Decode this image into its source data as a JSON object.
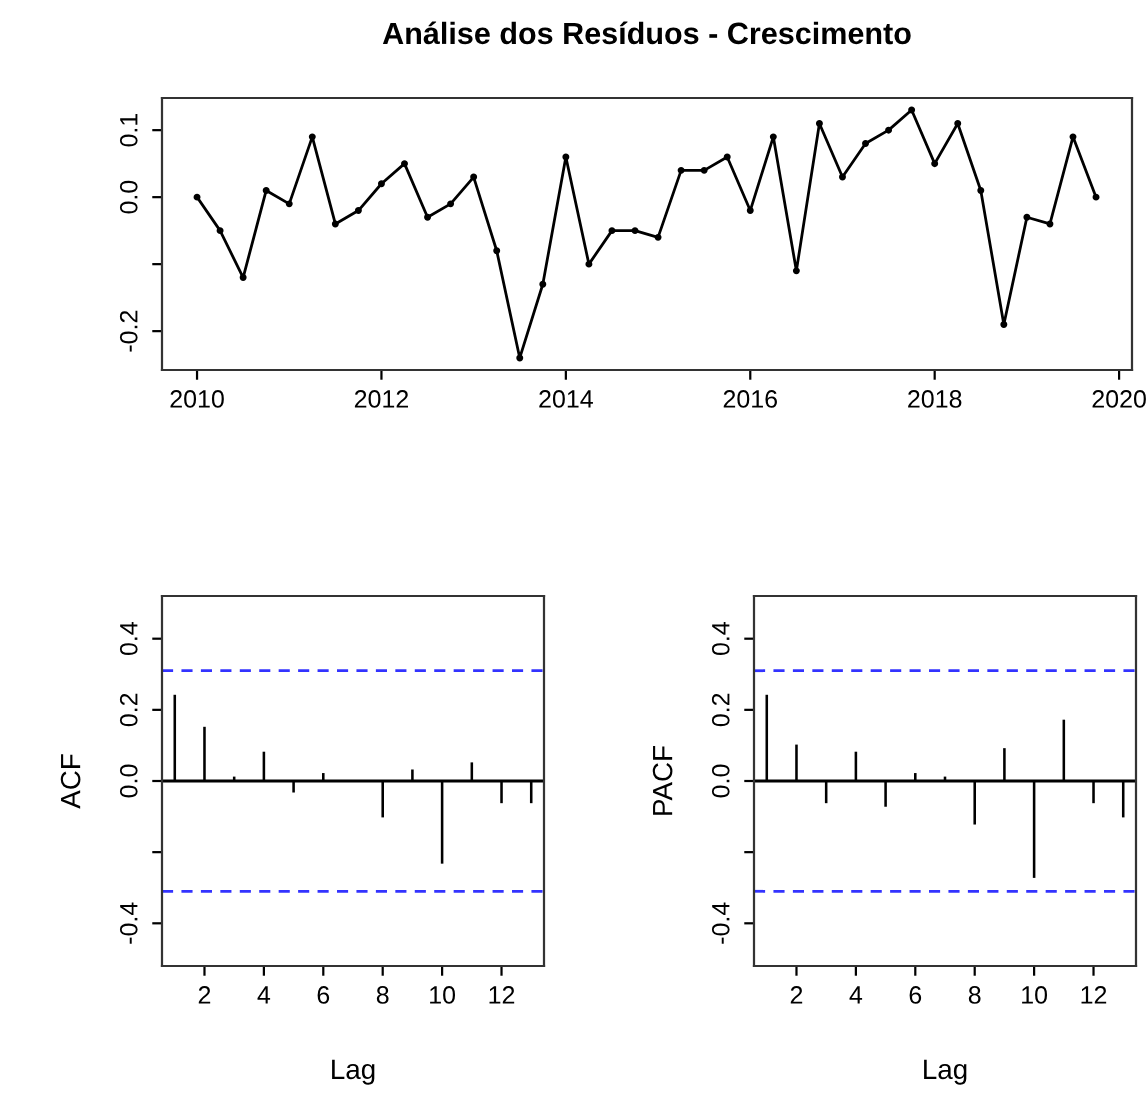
{
  "chart_data": [
    {
      "type": "line",
      "title": "Análise dos Resíduos - Crescimento",
      "marker": "circle",
      "grid": false,
      "x": [
        2010.0,
        2010.25,
        2010.5,
        2010.75,
        2011.0,
        2011.25,
        2011.5,
        2011.75,
        2012.0,
        2012.25,
        2012.5,
        2012.75,
        2013.0,
        2013.25,
        2013.5,
        2013.75,
        2014.0,
        2014.25,
        2014.5,
        2014.75,
        2015.0,
        2015.25,
        2015.5,
        2015.75,
        2016.0,
        2016.25,
        2016.5,
        2016.75,
        2017.0,
        2017.25,
        2017.5,
        2017.75,
        2018.0,
        2018.25,
        2018.5,
        2018.75,
        2019.0,
        2019.25,
        2019.5,
        2019.75
      ],
      "series": [
        {
          "color": "#000000",
          "values": [
            0.0,
            -0.05,
            -0.12,
            0.01,
            -0.01,
            0.09,
            -0.04,
            -0.02,
            0.02,
            0.05,
            -0.03,
            -0.01,
            0.03,
            -0.08,
            -0.24,
            -0.13,
            0.06,
            -0.1,
            -0.05,
            -0.05,
            -0.06,
            0.04,
            0.04,
            0.06,
            -0.02,
            0.09,
            -0.11,
            0.11,
            0.03,
            0.08,
            0.1,
            0.13,
            0.05,
            0.11,
            0.01,
            -0.19,
            -0.03,
            -0.04,
            0.09,
            0.0
          ]
        }
      ],
      "xlim": [
        2009.62,
        2020.14
      ],
      "xticks": [
        2010,
        2012,
        2014,
        2016,
        2018,
        2020
      ],
      "ylim": [
        -0.258,
        0.148
      ],
      "yticks": [
        {
          "value": -0.2,
          "label": "-0.2"
        },
        {
          "value": -0.1,
          "label": null
        },
        {
          "value": 0.0,
          "label": "0.0"
        },
        {
          "value": 0.1,
          "label": "0.1"
        }
      ]
    },
    {
      "type": "bar",
      "xlabel": "Lag",
      "ylabel": "ACF",
      "grid": false,
      "x": [
        1,
        2,
        3,
        4,
        5,
        6,
        7,
        8,
        9,
        10,
        11,
        12,
        13
      ],
      "series": [
        {
          "color": "#000000",
          "values": [
            0.24,
            0.15,
            0.01,
            0.08,
            -0.03,
            0.02,
            0.0,
            -0.1,
            0.03,
            -0.23,
            0.05,
            -0.06,
            -0.06
          ]
        }
      ],
      "xlim": [
        0.57,
        13.43
      ],
      "xticks": [
        2,
        4,
        6,
        8,
        10,
        12
      ],
      "ylim": [
        -0.52,
        0.52
      ],
      "yticks": [
        {
          "value": -0.4,
          "label": "-0.4"
        },
        {
          "value": -0.2,
          "label": null
        },
        {
          "value": 0.0,
          "label": "0.0"
        },
        {
          "value": 0.2,
          "label": "0.2"
        },
        {
          "value": 0.4,
          "label": "0.4"
        }
      ],
      "ref_lines": [
        {
          "axis": "y",
          "value": 0.31,
          "color": "#3333ff",
          "line_style": "dashed"
        },
        {
          "axis": "y",
          "value": -0.31,
          "color": "#3333ff",
          "line_style": "dashed"
        },
        {
          "axis": "y",
          "value": 0.0,
          "color": "#000000",
          "line_style": "solid"
        }
      ]
    },
    {
      "type": "bar",
      "xlabel": "Lag",
      "ylabel": "PACF",
      "grid": false,
      "x": [
        1,
        2,
        3,
        4,
        5,
        6,
        7,
        8,
        9,
        10,
        11,
        12,
        13
      ],
      "series": [
        {
          "color": "#000000",
          "values": [
            0.24,
            0.1,
            -0.06,
            0.08,
            -0.07,
            0.02,
            0.01,
            -0.12,
            0.09,
            -0.27,
            0.17,
            -0.06,
            -0.1
          ]
        }
      ],
      "xlim": [
        0.57,
        13.43
      ],
      "xticks": [
        2,
        4,
        6,
        8,
        10,
        12
      ],
      "ylim": [
        -0.52,
        0.52
      ],
      "yticks": [
        {
          "value": -0.4,
          "label": "-0.4"
        },
        {
          "value": -0.2,
          "label": null
        },
        {
          "value": 0.0,
          "label": "0.0"
        },
        {
          "value": 0.2,
          "label": "0.2"
        },
        {
          "value": 0.4,
          "label": "0.4"
        }
      ],
      "ref_lines": [
        {
          "axis": "y",
          "value": 0.31,
          "color": "#3333ff",
          "line_style": "dashed"
        },
        {
          "axis": "y",
          "value": -0.31,
          "color": "#3333ff",
          "line_style": "dashed"
        },
        {
          "axis": "y",
          "value": 0.0,
          "color": "#000000",
          "line_style": "solid"
        }
      ]
    }
  ]
}
